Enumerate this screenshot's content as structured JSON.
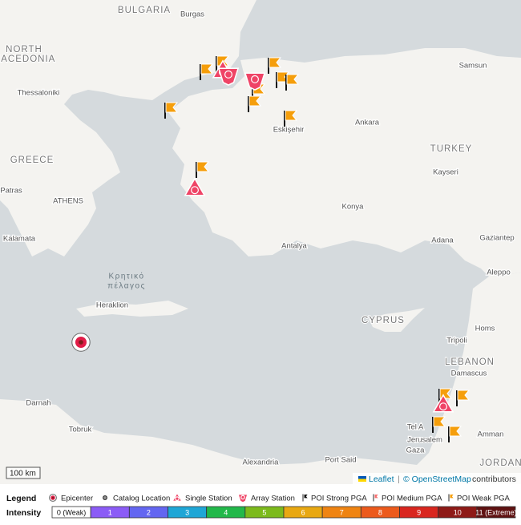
{
  "map": {
    "labels": [
      "BULGARIA",
      "Burgas",
      "NORTH",
      "MACEDONIA",
      "Thessaloniki",
      "GREECE",
      "ATHENS",
      "Patras",
      "Kalamata",
      "Κρητικό",
      "πέλαγος",
      "Heraklion",
      "Samsun",
      "Ankara",
      "TURKEY",
      "Kayseri",
      "Konya",
      "Antalya",
      "Adana",
      "Gaziantep",
      "Aleppo",
      "CYPRUS",
      "Tripoli",
      "Homs",
      "LEBANON",
      "Damascus",
      "Amman",
      "Jerusalem",
      "Tel A",
      "Gaza",
      "Darnah",
      "Tobruk",
      "Alexandria",
      "Port Said",
      "JORDAN",
      "Eskişehir"
    ]
  },
  "scale": "100 km",
  "attribution": {
    "leaflet": "Leaflet",
    "separator": "|",
    "osm": "© OpenStreetMap",
    "contributors": "contributors"
  },
  "legend": {
    "title": "Legend",
    "items": [
      "Epicenter",
      "Catalog Location",
      "Single Station",
      "Array Station",
      "POI Strong PGA",
      "POI Medium PGA",
      "POI Weak PGA"
    ]
  },
  "intensity": {
    "title": "Intensity",
    "levels": [
      {
        "label": "0 (Weak)",
        "color": "#ffffff"
      },
      {
        "label": "1",
        "color": "#8b5cf6"
      },
      {
        "label": "2",
        "color": "#6366f1"
      },
      {
        "label": "3",
        "color": "#1fa6d6"
      },
      {
        "label": "4",
        "color": "#22b84a"
      },
      {
        "label": "5",
        "color": "#7cba1c"
      },
      {
        "label": "6",
        "color": "#e8a812"
      },
      {
        "label": "7",
        "color": "#ef8412"
      },
      {
        "label": "8",
        "color": "#ec5a1c"
      },
      {
        "label": "9",
        "color": "#d9261f"
      },
      {
        "label": "10",
        "color": "#8e1a17"
      },
      {
        "label": "11 (Extreme)",
        "color": "#5f1212"
      }
    ]
  }
}
